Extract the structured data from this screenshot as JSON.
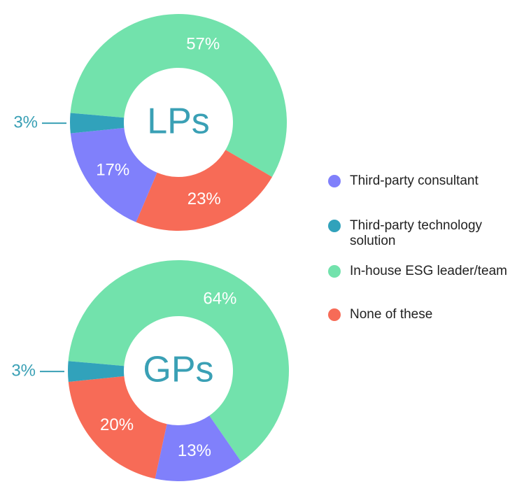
{
  "chart_data": {
    "type": "donut",
    "categories": [
      "Third-party consultant",
      "Third-party technology solution",
      "In-house ESG leader/team",
      "None of these"
    ],
    "colors": [
      "#8080fb",
      "#31a2bb",
      "#72e2ac",
      "#f76b57"
    ],
    "series": [
      {
        "name": "LPs",
        "values": [
          17,
          3,
          57,
          23
        ],
        "value_labels": [
          "17%",
          "3%",
          "57%",
          "23%"
        ]
      },
      {
        "name": "GPs",
        "values": [
          13,
          3,
          64,
          20
        ],
        "value_labels": [
          "13%",
          "3%",
          "64%",
          "20%"
        ]
      }
    ]
  }
}
